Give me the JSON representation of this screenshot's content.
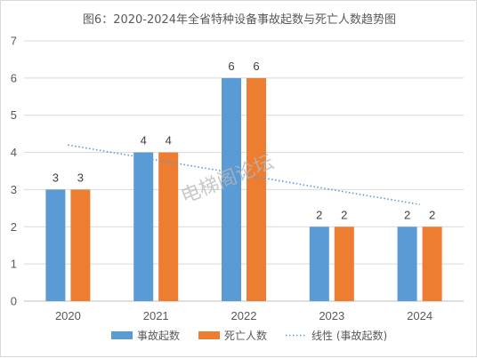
{
  "chart_data": {
    "type": "bar",
    "title": "图6：2020-2024年全省特种设备事故起数与死亡人数趋势图",
    "categories": [
      "2020",
      "2021",
      "2022",
      "2023",
      "2024"
    ],
    "series": [
      {
        "name": "事故起数",
        "values": [
          3,
          4,
          6,
          2,
          2
        ],
        "color": "#5b9bd5"
      },
      {
        "name": "死亡人数",
        "values": [
          3,
          4,
          6,
          2,
          2
        ],
        "color": "#ed7d31"
      }
    ],
    "trendline": {
      "name": "线性 (事故起数)",
      "of_series": "事故起数",
      "type": "linear",
      "style": "dotted",
      "color": "#5b9bd5"
    },
    "ylim": [
      0,
      7
    ],
    "yticks": [
      "0",
      "1",
      "2",
      "3",
      "4",
      "5",
      "6",
      "7"
    ],
    "data_labels": true,
    "grid": true,
    "legend_position": "bottom"
  },
  "watermark": "电梯阁论坛"
}
